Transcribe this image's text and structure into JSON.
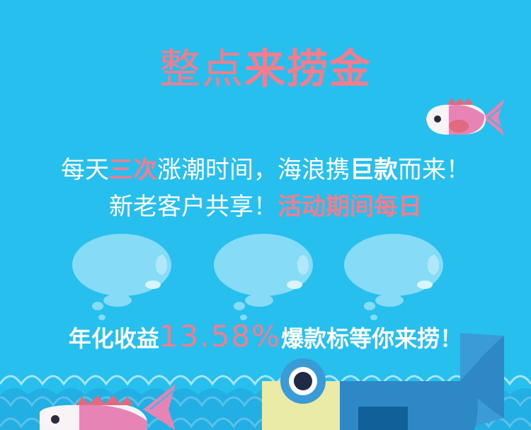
{
  "title": {
    "light": "整点",
    "bold": "来捞金"
  },
  "tagline1": {
    "a": "每天",
    "b": "三次",
    "c": "涨潮时间，海浪携",
    "d": "巨款",
    "e": "而来！"
  },
  "tagline2": {
    "a": "新老客户共享！",
    "b": "活动期间每日"
  },
  "yield_line": {
    "prefix": "年化收益",
    "rate": "13.58%",
    "suffix": "爆款标等你来捞！"
  },
  "colors": {
    "background": "#27bfee",
    "accent_pink": "#f17d8f",
    "bubble": "#86dcf7",
    "wave": "#1fa3da"
  },
  "icons": [
    "pink-fish-icon",
    "bubble-icon",
    "big-blue-fish-icon",
    "small-pink-fish-icon",
    "wave-decoration"
  ]
}
